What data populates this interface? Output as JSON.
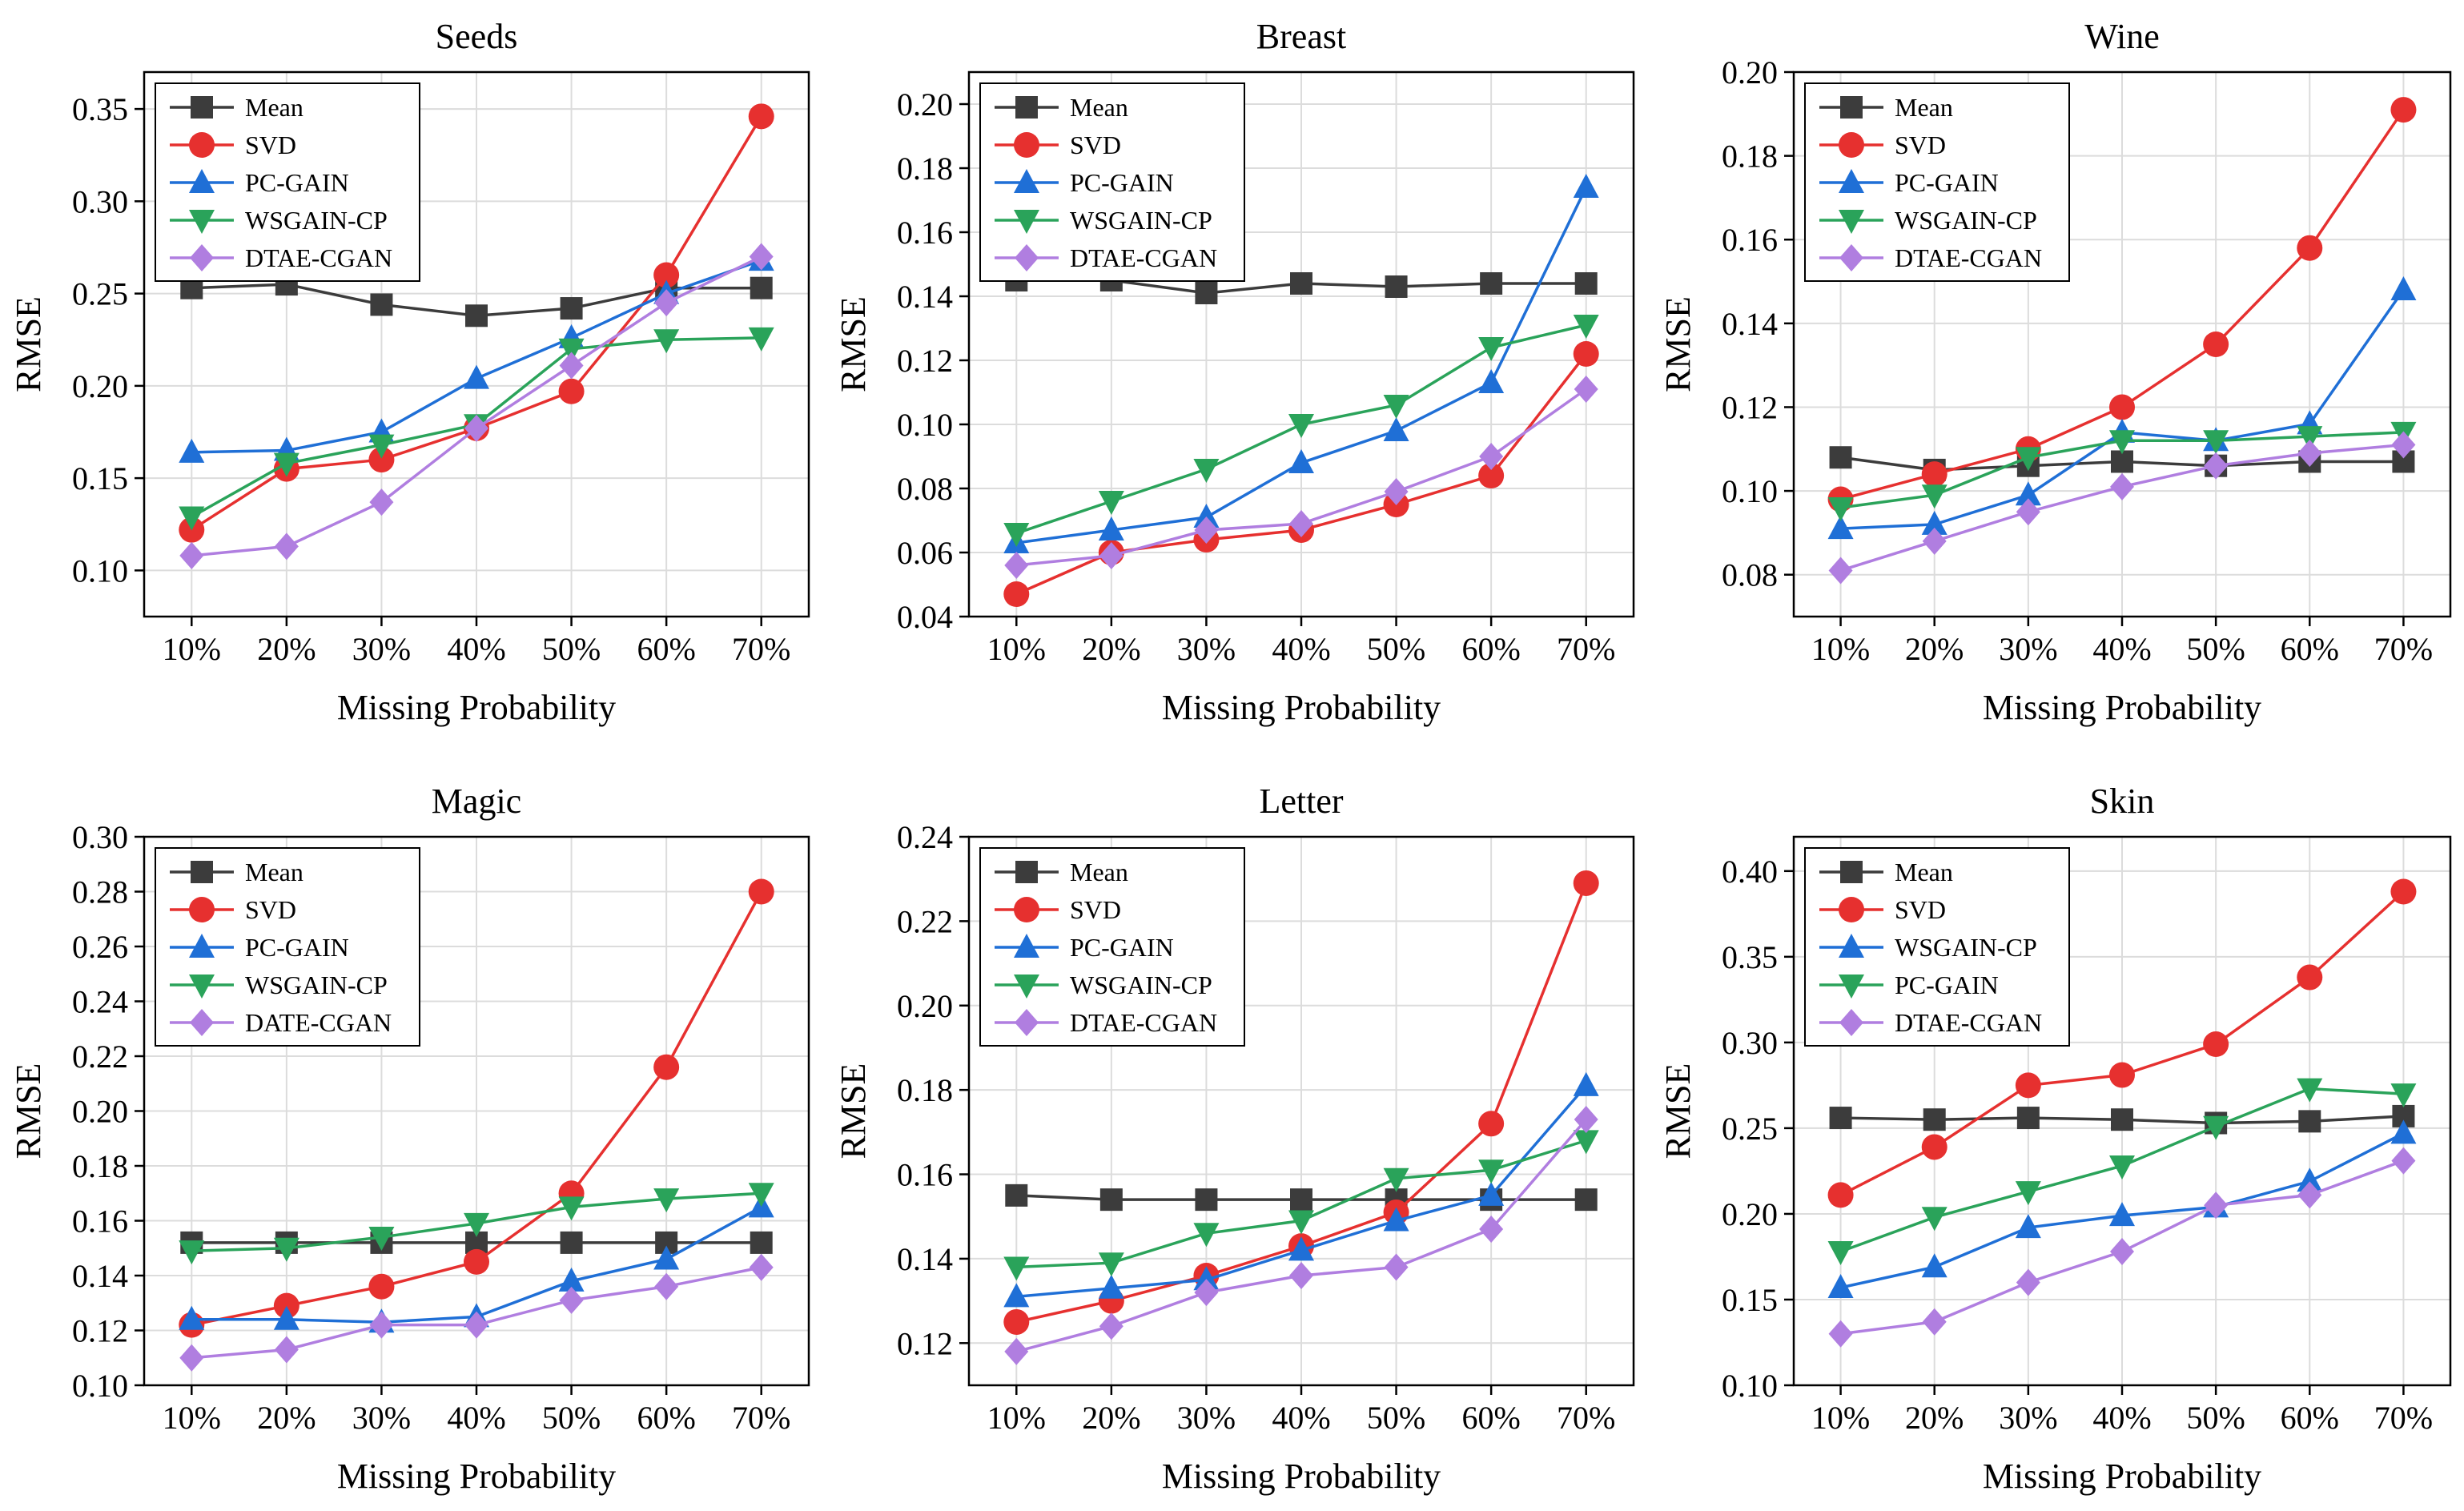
{
  "figure_caption": "RMSE versus missing probability for six datasets",
  "colors": {
    "Mean": "#3c3c3c",
    "SVD": "#e6302f",
    "PC-GAIN": "#1f6fd6",
    "WSGAIN-CP": "#2aa35a",
    "DTAE-CGAN": "#b07ee0",
    "DATE-CGAN": "#b07ee0",
    "grid": "#dcdcdc"
  },
  "markers": {
    "Mean": "square",
    "SVD": "circle",
    "PC-GAIN": "triangle-up",
    "WSGAIN-CP": "triangle-down",
    "DTAE-CGAN": "diamond",
    "DATE-CGAN": "diamond"
  },
  "chart_data": [
    {
      "type": "line",
      "title": "Seeds",
      "xlabel": "Missing Probability",
      "ylabel": "RMSE",
      "categories": [
        "10%",
        "20%",
        "30%",
        "40%",
        "50%",
        "60%",
        "70%"
      ],
      "ylim": [
        0.075,
        0.37
      ],
      "yticks": [
        0.1,
        0.15,
        0.2,
        0.25,
        0.3,
        0.35
      ],
      "ytick_labels": [
        "0.10",
        "0.15",
        "0.20",
        "0.25",
        "0.30",
        "0.35"
      ],
      "grid": true,
      "legend": "top-left",
      "series": [
        {
          "name": "Mean",
          "values": [
            0.253,
            0.255,
            0.244,
            0.238,
            0.242,
            0.253,
            0.253
          ]
        },
        {
          "name": "SVD",
          "values": [
            0.122,
            0.155,
            0.16,
            0.177,
            0.197,
            0.26,
            0.346
          ]
        },
        {
          "name": "PC-GAIN",
          "values": [
            0.164,
            0.165,
            0.175,
            0.204,
            0.226,
            0.25,
            0.268
          ]
        },
        {
          "name": "WSGAIN-CP",
          "values": [
            0.129,
            0.158,
            0.168,
            0.179,
            0.22,
            0.225,
            0.226
          ]
        },
        {
          "name": "DTAE-CGAN",
          "values": [
            0.108,
            0.113,
            0.137,
            0.177,
            0.211,
            0.245,
            0.27
          ]
        }
      ]
    },
    {
      "type": "line",
      "title": "Breast",
      "xlabel": "Missing Probability",
      "ylabel": "RMSE",
      "categories": [
        "10%",
        "20%",
        "30%",
        "40%",
        "50%",
        "60%",
        "70%"
      ],
      "ylim": [
        0.04,
        0.21
      ],
      "yticks": [
        0.04,
        0.06,
        0.08,
        0.1,
        0.12,
        0.14,
        0.16,
        0.18,
        0.2
      ],
      "ytick_labels": [
        "0.04",
        "0.06",
        "0.08",
        "0.10",
        "0.12",
        "0.14",
        "0.16",
        "0.18",
        "0.20"
      ],
      "grid": true,
      "legend": "top-left",
      "series": [
        {
          "name": "Mean",
          "values": [
            0.145,
            0.145,
            0.141,
            0.144,
            0.143,
            0.144,
            0.144
          ]
        },
        {
          "name": "SVD",
          "values": [
            0.047,
            0.06,
            0.064,
            0.067,
            0.075,
            0.084,
            0.122
          ]
        },
        {
          "name": "PC-GAIN",
          "values": [
            0.063,
            0.067,
            0.071,
            0.088,
            0.098,
            0.113,
            0.174
          ]
        },
        {
          "name": "WSGAIN-CP",
          "values": [
            0.066,
            0.076,
            0.086,
            0.1,
            0.106,
            0.124,
            0.131
          ]
        },
        {
          "name": "DTAE-CGAN",
          "values": [
            0.056,
            0.059,
            0.067,
            0.069,
            0.079,
            0.09,
            0.111
          ]
        }
      ]
    },
    {
      "type": "line",
      "title": "Wine",
      "xlabel": "Missing Probability",
      "ylabel": "RMSE",
      "categories": [
        "10%",
        "20%",
        "30%",
        "40%",
        "50%",
        "60%",
        "70%"
      ],
      "ylim": [
        0.07,
        0.2
      ],
      "yticks": [
        0.08,
        0.1,
        0.12,
        0.14,
        0.16,
        0.18,
        0.2
      ],
      "ytick_labels": [
        "0.08",
        "0.10",
        "0.12",
        "0.14",
        "0.16",
        "0.18",
        "0.20"
      ],
      "grid": true,
      "legend": "top-left",
      "series": [
        {
          "name": "Mean",
          "values": [
            0.108,
            0.105,
            0.106,
            0.107,
            0.106,
            0.107,
            0.107
          ]
        },
        {
          "name": "SVD",
          "values": [
            0.098,
            0.104,
            0.11,
            0.12,
            0.135,
            0.158,
            0.191
          ]
        },
        {
          "name": "PC-GAIN",
          "values": [
            0.091,
            0.092,
            0.099,
            0.114,
            0.112,
            0.116,
            0.148
          ]
        },
        {
          "name": "WSGAIN-CP",
          "values": [
            0.096,
            0.099,
            0.108,
            0.112,
            0.112,
            0.113,
            0.114
          ]
        },
        {
          "name": "DTAE-CGAN",
          "values": [
            0.081,
            0.088,
            0.095,
            0.101,
            0.106,
            0.109,
            0.111
          ]
        }
      ]
    },
    {
      "type": "line",
      "title": "Magic",
      "xlabel": "Missing Probability",
      "ylabel": "RMSE",
      "categories": [
        "10%",
        "20%",
        "30%",
        "40%",
        "50%",
        "60%",
        "70%"
      ],
      "ylim": [
        0.1,
        0.3
      ],
      "yticks": [
        0.1,
        0.12,
        0.14,
        0.16,
        0.18,
        0.2,
        0.22,
        0.24,
        0.26,
        0.28,
        0.3
      ],
      "ytick_labels": [
        "0.10",
        "0.12",
        "0.14",
        "0.16",
        "0.18",
        "0.20",
        "0.22",
        "0.24",
        "0.26",
        "0.28",
        "0.30"
      ],
      "grid": true,
      "legend": "top-left",
      "series": [
        {
          "name": "Mean",
          "values": [
            0.152,
            0.152,
            0.152,
            0.152,
            0.152,
            0.152,
            0.152
          ]
        },
        {
          "name": "SVD",
          "values": [
            0.122,
            0.129,
            0.136,
            0.145,
            0.17,
            0.216,
            0.28
          ]
        },
        {
          "name": "PC-GAIN",
          "values": [
            0.124,
            0.124,
            0.123,
            0.125,
            0.138,
            0.146,
            0.165
          ]
        },
        {
          "name": "WSGAIN-CP",
          "values": [
            0.149,
            0.15,
            0.154,
            0.159,
            0.165,
            0.168,
            0.17
          ]
        },
        {
          "name": "DATE-CGAN",
          "values": [
            0.11,
            0.113,
            0.122,
            0.122,
            0.131,
            0.136,
            0.143
          ]
        }
      ]
    },
    {
      "type": "line",
      "title": "Letter",
      "xlabel": "Missing Probability",
      "ylabel": "RMSE",
      "categories": [
        "10%",
        "20%",
        "30%",
        "40%",
        "50%",
        "60%",
        "70%"
      ],
      "ylim": [
        0.11,
        0.24
      ],
      "yticks": [
        0.12,
        0.14,
        0.16,
        0.18,
        0.2,
        0.22,
        0.24
      ],
      "ytick_labels": [
        "0.12",
        "0.14",
        "0.16",
        "0.18",
        "0.20",
        "0.22",
        "0.24"
      ],
      "grid": true,
      "legend": "top-left",
      "series": [
        {
          "name": "Mean",
          "values": [
            0.155,
            0.154,
            0.154,
            0.154,
            0.154,
            0.154,
            0.154
          ]
        },
        {
          "name": "SVD",
          "values": [
            0.125,
            0.13,
            0.136,
            0.143,
            0.151,
            0.172,
            0.229
          ]
        },
        {
          "name": "PC-GAIN",
          "values": [
            0.131,
            0.133,
            0.135,
            0.142,
            0.149,
            0.155,
            0.181
          ]
        },
        {
          "name": "WSGAIN-CP",
          "values": [
            0.138,
            0.139,
            0.146,
            0.149,
            0.159,
            0.161,
            0.168
          ]
        },
        {
          "name": "DTAE-CGAN",
          "values": [
            0.118,
            0.124,
            0.132,
            0.136,
            0.138,
            0.147,
            0.173
          ]
        }
      ]
    },
    {
      "type": "line",
      "title": "Skin",
      "xlabel": "Missing Probability",
      "ylabel": "RMSE",
      "categories": [
        "10%",
        "20%",
        "30%",
        "40%",
        "50%",
        "60%",
        "70%"
      ],
      "ylim": [
        0.1,
        0.42
      ],
      "yticks": [
        0.1,
        0.15,
        0.2,
        0.25,
        0.3,
        0.35,
        0.4
      ],
      "ytick_labels": [
        "0.10",
        "0.15",
        "0.20",
        "0.25",
        "0.30",
        "0.35",
        "0.40"
      ],
      "grid": true,
      "legend": "top-left",
      "series": [
        {
          "name": "Mean",
          "values": [
            0.256,
            0.255,
            0.256,
            0.255,
            0.253,
            0.254,
            0.257
          ]
        },
        {
          "name": "SVD",
          "values": [
            0.211,
            0.239,
            0.275,
            0.281,
            0.299,
            0.338,
            0.388
          ]
        },
        {
          "name": "WSGAIN-CP",
          "values": [
            0.157,
            0.169,
            0.192,
            0.199,
            0.204,
            0.219,
            0.247
          ],
          "color_key": "PC-GAIN",
          "marker_key": "PC-GAIN"
        },
        {
          "name": "PC-GAIN",
          "values": [
            0.178,
            0.198,
            0.213,
            0.228,
            0.251,
            0.273,
            0.27
          ],
          "color_key": "WSGAIN-CP",
          "marker_key": "WSGAIN-CP"
        },
        {
          "name": "DTAE-CGAN",
          "values": [
            0.13,
            0.137,
            0.16,
            0.178,
            0.205,
            0.211,
            0.231
          ]
        }
      ]
    }
  ]
}
